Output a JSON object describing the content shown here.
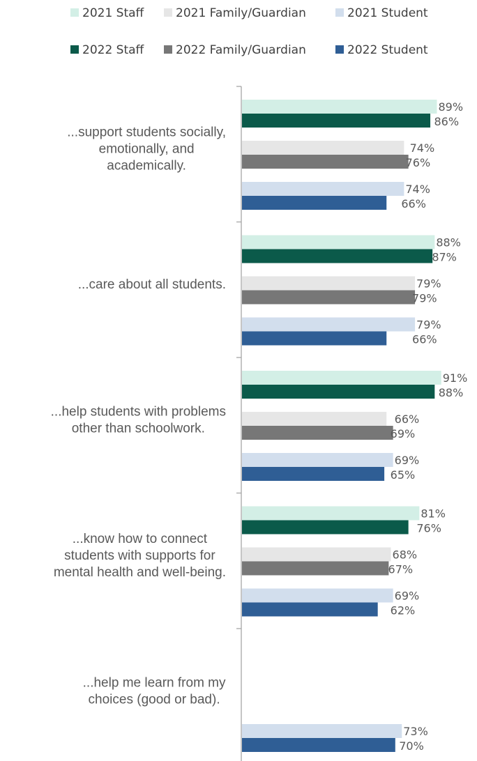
{
  "chart_data": {
    "type": "bar",
    "orientation": "horizontal",
    "legend_position": "top",
    "xlim": [
      0,
      100
    ],
    "value_suffix": "%",
    "categories": [
      [
        "...support students socially,",
        "emotionally, and",
        "academically."
      ],
      [
        "...care about all students."
      ],
      [
        "...help students with problems",
        "other than schoolwork."
      ],
      [
        "...know how to connect",
        "students with supports for",
        "mental health and well-being."
      ],
      [
        "...help me learn from my",
        "choices (good or bad)."
      ]
    ],
    "series": [
      {
        "name": "2021 Staff",
        "color": "#d3efe6",
        "values": [
          89,
          88,
          91,
          81,
          null
        ]
      },
      {
        "name": "2022 Staff",
        "color": "#0b5a4a",
        "values": [
          86,
          87,
          88,
          76,
          null
        ]
      },
      {
        "name": "2021 Family/Guardian",
        "color": "#e6e6e6",
        "values": [
          74,
          79,
          66,
          68,
          null
        ]
      },
      {
        "name": "2022 Family/Guardian",
        "color": "#777777",
        "values": [
          76,
          79,
          69,
          67,
          null
        ]
      },
      {
        "name": "2021 Student",
        "color": "#d2deed",
        "values": [
          74,
          79,
          69,
          69,
          73
        ]
      },
      {
        "name": "2022 Student",
        "color": "#2f5e95",
        "values": [
          66,
          66,
          65,
          62,
          70
        ]
      }
    ]
  }
}
